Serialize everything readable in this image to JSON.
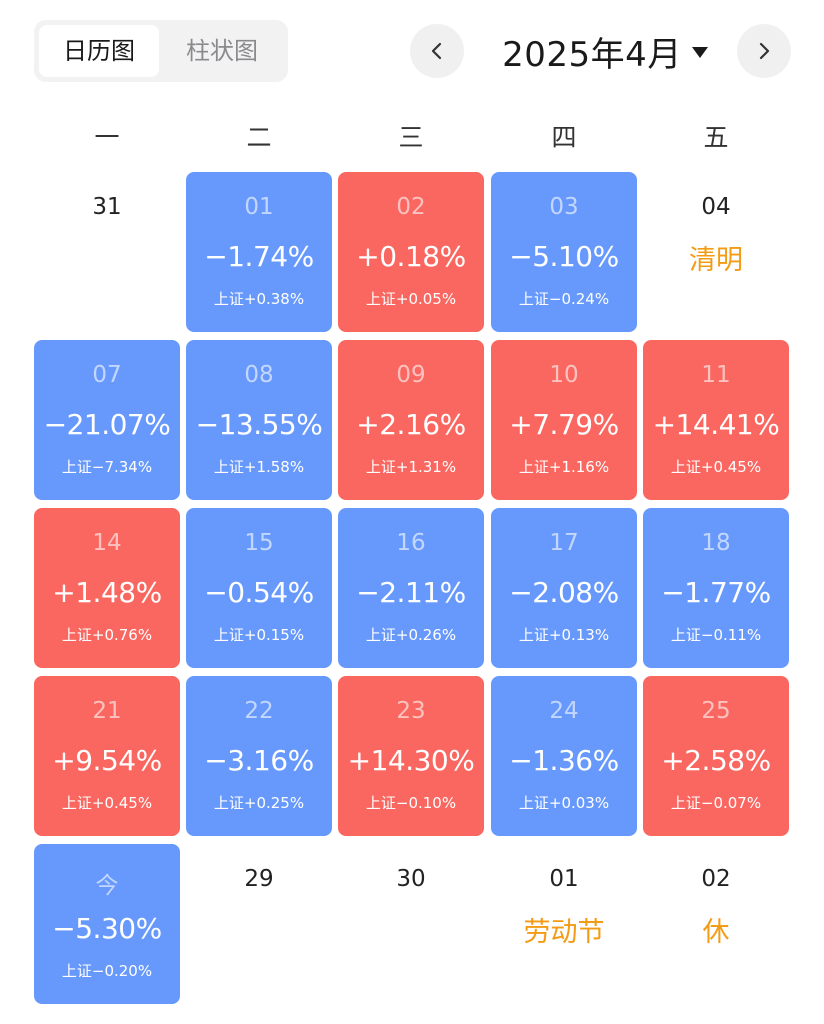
{
  "header": {
    "tabs": [
      {
        "label": "日历图",
        "active": true
      },
      {
        "label": "柱状图",
        "active": false
      }
    ],
    "month_label": "2025年4月",
    "prev_icon": "chevron-left-icon",
    "next_icon": "chevron-right-icon",
    "dropdown_icon": "caret-down-icon"
  },
  "weekdays": [
    "一",
    "二",
    "三",
    "四",
    "五"
  ],
  "colors": {
    "up": "#fa6760",
    "down": "#6799fd",
    "holiday": "#f39b15"
  },
  "weeks": [
    [
      {
        "day": "31",
        "type": "empty"
      },
      {
        "day": "01",
        "type": "down",
        "change": "−1.74%",
        "index": "上证+0.38%"
      },
      {
        "day": "02",
        "type": "up",
        "change": "+0.18%",
        "index": "上证+0.05%"
      },
      {
        "day": "03",
        "type": "down",
        "change": "−5.10%",
        "index": "上证−0.24%"
      },
      {
        "day": "04",
        "type": "empty",
        "holiday": "清明"
      }
    ],
    [
      {
        "day": "07",
        "type": "down",
        "change": "−21.07%",
        "index": "上证−7.34%"
      },
      {
        "day": "08",
        "type": "down",
        "change": "−13.55%",
        "index": "上证+1.58%"
      },
      {
        "day": "09",
        "type": "up",
        "change": "+2.16%",
        "index": "上证+1.31%"
      },
      {
        "day": "10",
        "type": "up",
        "change": "+7.79%",
        "index": "上证+1.16%"
      },
      {
        "day": "11",
        "type": "up",
        "change": "+14.41%",
        "index": "上证+0.45%"
      }
    ],
    [
      {
        "day": "14",
        "type": "up",
        "change": "+1.48%",
        "index": "上证+0.76%"
      },
      {
        "day": "15",
        "type": "down",
        "change": "−0.54%",
        "index": "上证+0.15%"
      },
      {
        "day": "16",
        "type": "down",
        "change": "−2.11%",
        "index": "上证+0.26%"
      },
      {
        "day": "17",
        "type": "down",
        "change": "−2.08%",
        "index": "上证+0.13%"
      },
      {
        "day": "18",
        "type": "down",
        "change": "−1.77%",
        "index": "上证−0.11%"
      }
    ],
    [
      {
        "day": "21",
        "type": "up",
        "change": "+9.54%",
        "index": "上证+0.45%"
      },
      {
        "day": "22",
        "type": "down",
        "change": "−3.16%",
        "index": "上证+0.25%"
      },
      {
        "day": "23",
        "type": "up",
        "change": "+14.30%",
        "index": "上证−0.10%"
      },
      {
        "day": "24",
        "type": "down",
        "change": "−1.36%",
        "index": "上证+0.03%"
      },
      {
        "day": "25",
        "type": "up",
        "change": "+2.58%",
        "index": "上证−0.07%"
      }
    ],
    [
      {
        "day": "今",
        "type": "down",
        "change": "−5.30%",
        "index": "上证−0.20%"
      },
      {
        "day": "29",
        "type": "empty"
      },
      {
        "day": "30",
        "type": "empty"
      },
      {
        "day": "01",
        "type": "empty",
        "holiday": "劳动节"
      },
      {
        "day": "02",
        "type": "empty",
        "holiday": "休"
      }
    ]
  ]
}
